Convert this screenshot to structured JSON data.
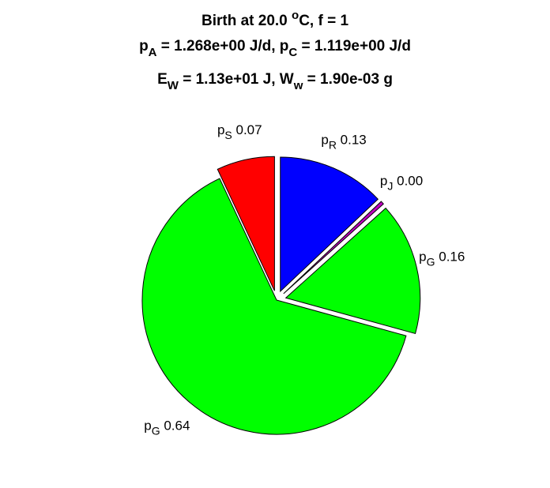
{
  "chart_data": {
    "type": "pie",
    "title_lines": [
      [
        {
          "text": "Birth at 20.0 "
        },
        {
          "sup": "o"
        },
        {
          "text": "C, f = 1"
        }
      ],
      [
        {
          "text": "p"
        },
        {
          "sub": "A"
        },
        {
          "text": " = 1.268e+00 J/d, p"
        },
        {
          "sub": "C"
        },
        {
          "text": " = 1.119e+00 J/d"
        }
      ],
      [
        {
          "text": "E"
        },
        {
          "sub": "W"
        },
        {
          "text": " = 1.13e+01 J, W"
        },
        {
          "sub": "w"
        },
        {
          "text": " = 1.90e-03 g"
        }
      ]
    ],
    "categories": [
      [
        "p",
        "R"
      ],
      [
        "p",
        "J"
      ],
      [
        "p",
        "G"
      ],
      [
        "p",
        "G"
      ],
      [
        "p",
        "S"
      ]
    ],
    "values": [
      0.13,
      0.004,
      0.16,
      0.64,
      0.07
    ],
    "value_labels": [
      "0.13",
      "0.00",
      "0.16",
      "0.64",
      "0.07"
    ],
    "colors": [
      "#0000ff",
      "#c000c0",
      "#00ff00",
      "#00ff00",
      "#ff0000"
    ],
    "explode": [
      true,
      true,
      true,
      false,
      true
    ]
  }
}
